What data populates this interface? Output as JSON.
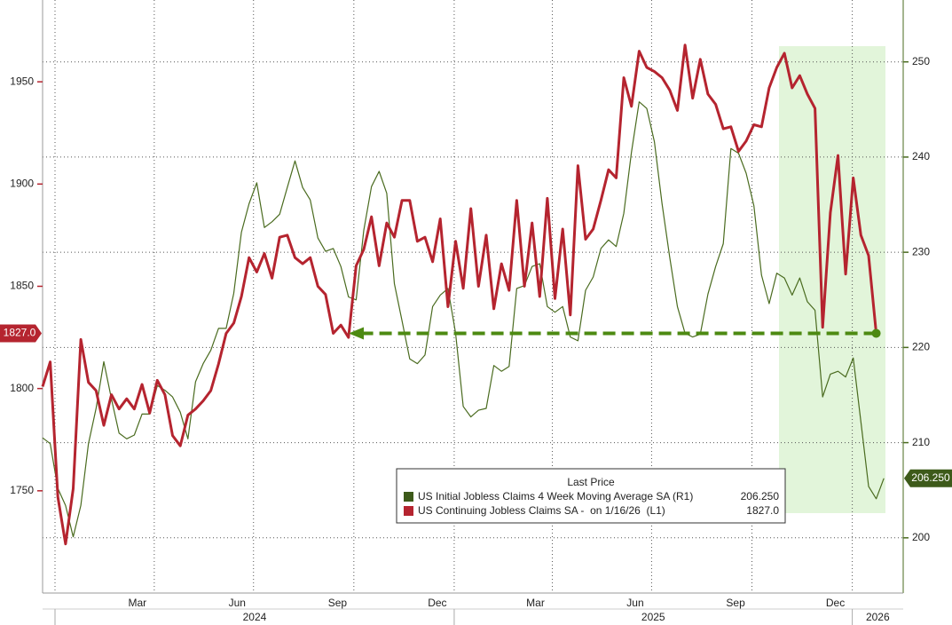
{
  "chart_data": {
    "type": "line",
    "legend_title": "Last Price",
    "ylim": [
      1700,
      1990
    ],
    "yticks": [
      1750,
      1800,
      1850,
      1900,
      1950
    ],
    "y2lim": [
      194.2,
      256.5
    ],
    "y2ticks": [
      200,
      210,
      220,
      230,
      240,
      250
    ],
    "xticks": [
      {
        "value": "2024-03",
        "label": "Mar"
      },
      {
        "value": "2024-06",
        "label": "Jun"
      },
      {
        "value": "2024-09",
        "label": "Sep"
      },
      {
        "value": "2024-12",
        "label": "Dec"
      },
      {
        "value": "2025-03",
        "label": "Mar"
      },
      {
        "value": "2025-06",
        "label": "Jun"
      },
      {
        "value": "2025-09",
        "label": "Sep"
      },
      {
        "value": "2025-12",
        "label": "Dec"
      }
    ],
    "xgrid": [
      "2024-01",
      "2024-04",
      "2024-07",
      "2024-10",
      "2025-01",
      "2025-04",
      "2025-07",
      "2025-10",
      "2026-01"
    ],
    "years": [
      2024,
      2025,
      2026
    ],
    "grid": true,
    "series": [
      {
        "name": "US Initial Jobless Claims 4 Week Moving Average SA (R1)",
        "color": "#4a6b1f",
        "axis": "y2",
        "last_label": "206.250",
        "values": [
          210.5,
          209.9,
          205.2,
          203.4,
          200.1,
          203.4,
          209.9,
          213.6,
          218.5,
          214.6,
          211.0,
          210.4,
          210.8,
          213.0,
          213.0,
          216.0,
          215.5,
          214.8,
          213.2,
          210.4,
          216.4,
          218.3,
          219.7,
          222.0,
          222.0,
          225.7,
          232.1,
          235.1,
          237.3,
          232.6,
          233.2,
          234.0,
          236.8,
          239.6,
          236.8,
          235.5,
          231.5,
          230.1,
          230.4,
          228.5,
          225.3,
          225.0,
          232.3,
          236.9,
          238.5,
          236.2,
          226.7,
          222.8,
          218.8,
          218.3,
          219.2,
          224.3,
          225.5,
          226.2,
          221.5,
          213.8,
          212.7,
          213.4,
          213.6,
          218.1,
          217.5,
          218.0,
          226.2,
          226.5,
          228.5,
          228.8,
          224.3,
          223.7,
          224.3,
          221.1,
          220.7,
          226.0,
          227.4,
          230.4,
          231.3,
          230.6,
          234.1,
          240.5,
          245.8,
          245.1,
          241.6,
          235.1,
          229.5,
          224.3,
          221.5,
          221.1,
          221.4,
          225.6,
          228.5,
          230.9,
          240.9,
          240.4,
          238.3,
          234.9,
          227.6,
          224.6,
          227.8,
          227.3,
          225.5,
          227.3,
          224.8,
          223.9,
          214.8,
          217.2,
          217.5,
          216.9,
          218.9,
          212.2,
          205.4,
          204.1,
          206.25
        ]
      },
      {
        "name": "US Continuing Jobless Claims SA -  on 1/16/26  (L1)",
        "color": "#b5242f",
        "axis": "y",
        "last_label": "1827.0",
        "values": [
          1801,
          1813,
          1747,
          1724,
          1751,
          1824,
          1803,
          1799,
          1782,
          1797,
          1790,
          1795,
          1790,
          1802,
          1788,
          1804,
          1797,
          1777,
          1772,
          1787,
          1790,
          1794,
          1799,
          1812,
          1827,
          1832,
          1845,
          1864,
          1857,
          1866,
          1854,
          1874,
          1875,
          1864,
          1861,
          1864,
          1850,
          1846,
          1827,
          1831,
          1825,
          1860,
          1868,
          1884,
          1860,
          1881,
          1874,
          1892,
          1892,
          1872,
          1874,
          1862,
          1883,
          1840,
          1872,
          1849,
          1888,
          1850,
          1875,
          1839,
          1861,
          1848,
          1892,
          1850,
          1881,
          1845,
          1893,
          1844,
          1878,
          1836,
          1909,
          1873,
          1878,
          1892,
          1907,
          1903,
          1952,
          1938,
          1965,
          1957,
          1955,
          1952,
          1946,
          1936,
          1968,
          1942,
          1961,
          1944,
          1939,
          1927,
          1928,
          1916,
          1921,
          1929,
          1928,
          1947,
          1957,
          1964,
          1947,
          1953,
          1944,
          1937,
          1830,
          1886,
          1914,
          1856,
          1903,
          1875,
          1865,
          1827,
          null
        ]
      }
    ]
  }
}
